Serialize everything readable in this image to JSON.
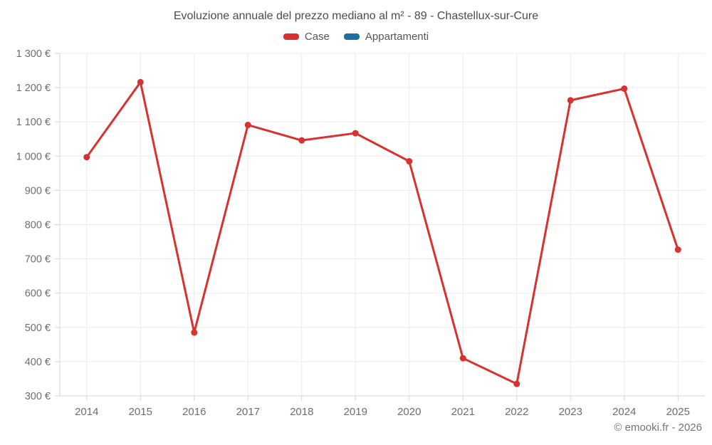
{
  "header": {
    "title": "Evoluzione annuale del prezzo mediano al m² - 89 - Chastellux-sur-Cure"
  },
  "legend": {
    "items": [
      {
        "label": "Case",
        "color": "#d8312e"
      },
      {
        "label": "Appartamenti",
        "color": "#1c6f9f"
      }
    ]
  },
  "chart_data": {
    "type": "line",
    "title": "Evoluzione annuale del prezzo mediano al m² - 89 - Chastellux-sur-Cure",
    "xlabel": "",
    "ylabel": "",
    "categories": [
      "2014",
      "2015",
      "2016",
      "2017",
      "2018",
      "2019",
      "2020",
      "2021",
      "2022",
      "2023",
      "2024",
      "2025"
    ],
    "series": [
      {
        "name": "Case",
        "color": "#d8312e",
        "values": [
          997,
          1216,
          485,
          1091,
          1046,
          1067,
          985,
          410,
          335,
          1163,
          1197,
          727
        ]
      },
      {
        "name": "Appartamenti",
        "color": "#1c6f9f",
        "values": []
      }
    ],
    "ylim": [
      300,
      1300
    ],
    "y_ticks": [
      {
        "value": 300,
        "label": "300 €"
      },
      {
        "value": 400,
        "label": "400 €"
      },
      {
        "value": 500,
        "label": "500 €"
      },
      {
        "value": 600,
        "label": "600 €"
      },
      {
        "value": 700,
        "label": "700 €"
      },
      {
        "value": 800,
        "label": "800 €"
      },
      {
        "value": 900,
        "label": "900 €"
      },
      {
        "value": 1000,
        "label": "1 000 €"
      },
      {
        "value": 1100,
        "label": "1 100 €"
      },
      {
        "value": 1200,
        "label": "1 200 €"
      },
      {
        "value": 1300,
        "label": "1 300 €"
      }
    ],
    "grid": true,
    "legend_position": "top",
    "colors": {
      "grid": "#ececec",
      "axis": "#d6d6d6",
      "tick_label": "#6e6e6e"
    }
  },
  "footer": {
    "copyright": "© emooki.fr - 2026"
  }
}
